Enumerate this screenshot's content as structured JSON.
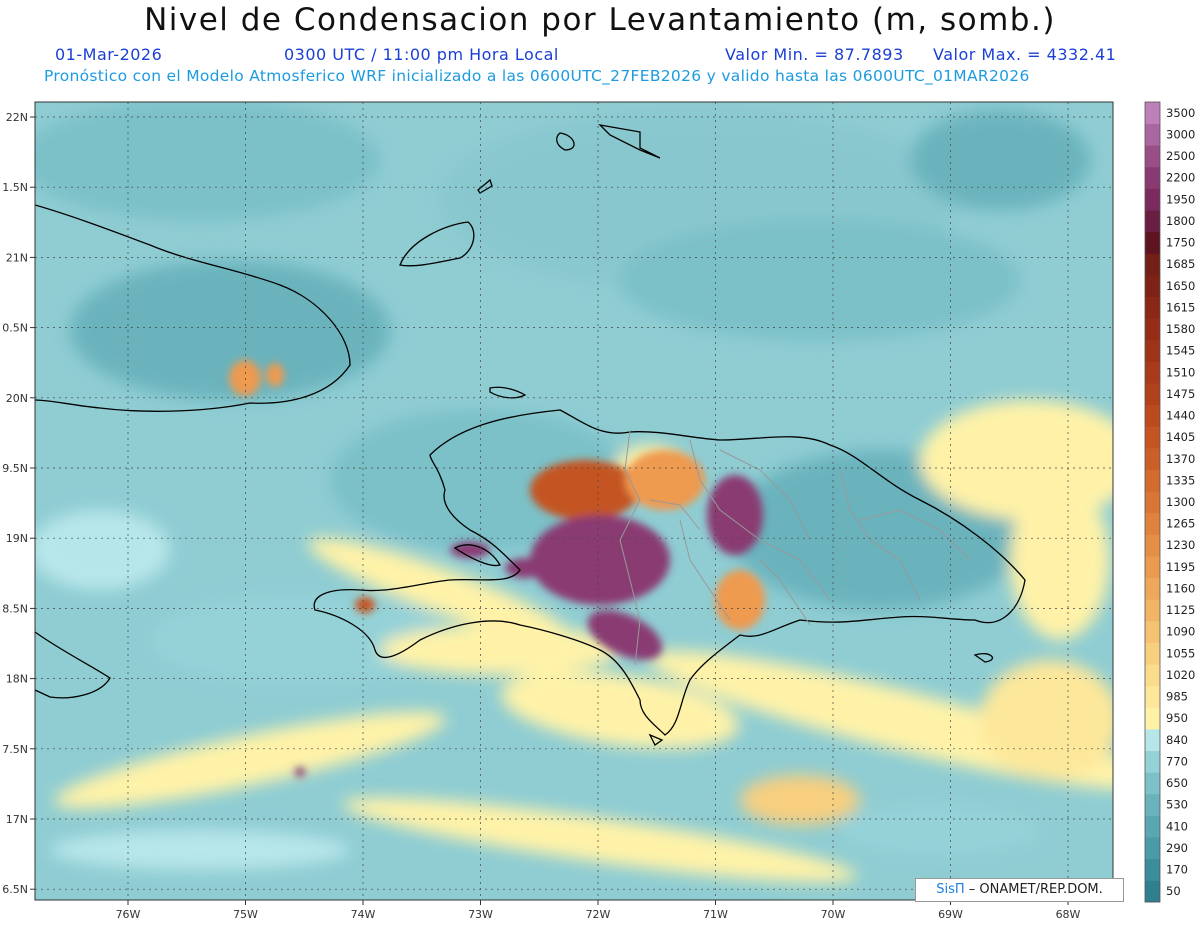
{
  "title": "Nivel de Condensacion por Levantamiento (m, somb.)",
  "header": {
    "date": "01-Mar-2026",
    "time": "0300 UTC / 11:00 pm Hora Local",
    "valor_min": "Valor Min. = 87.7893",
    "valor_max": "Valor Max. = 4332.41",
    "forecast_note": "Pronóstico con el Modelo Atmosferico WRF inicializado a las 0600UTC_27FEB2026 y valido hasta las  0600UTC_01MAR2026"
  },
  "axes": {
    "lon_labels": [
      "76W",
      "75W",
      "74W",
      "73W",
      "72W",
      "71W",
      "70W",
      "69W",
      "68W"
    ],
    "lat_labels": [
      "22N",
      "1.5N",
      "21N",
      "0.5N",
      "20N",
      "9.5N",
      "19N",
      "8.5N",
      "18N",
      "7.5N",
      "17N",
      "6.5N"
    ]
  },
  "colorbar": {
    "levels": [
      "50",
      "170",
      "290",
      "410",
      "530",
      "650",
      "770",
      "840",
      "950",
      "985",
      "1020",
      "1055",
      "1090",
      "1125",
      "1160",
      "1195",
      "1230",
      "1265",
      "1300",
      "1335",
      "1370",
      "1405",
      "1440",
      "1475",
      "1510",
      "1545",
      "1580",
      "1615",
      "1650",
      "1685",
      "1750",
      "1800",
      "1950",
      "2200",
      "2500",
      "3000",
      "3500"
    ],
    "colors": [
      "#2f7f8f",
      "#3b8d9c",
      "#4a9aa8",
      "#5aa7b3",
      "#6ab3bd",
      "#7cc0c8",
      "#94d2d8",
      "#b7e6ea",
      "#fff2a8",
      "#fde79a",
      "#fbdc8c",
      "#f8cf7e",
      "#f5c272",
      "#f2b566",
      "#eea85b",
      "#ea9b50",
      "#e58e46",
      "#e0823d",
      "#da7635",
      "#d36a2e",
      "#cc5f28",
      "#c45523",
      "#bb4b1f",
      "#b2421c",
      "#a93a1a",
      "#9f3318",
      "#952d17",
      "#8a2716",
      "#7f2216",
      "#741e18",
      "#5e1420",
      "#6a1e42",
      "#7a2a5c",
      "#8a3a72",
      "#9a4e88",
      "#aa66a0",
      "#bd80b8"
    ]
  },
  "credit": {
    "brand": "SisΠ",
    "text": "– ONAMET/REP.DOM."
  }
}
